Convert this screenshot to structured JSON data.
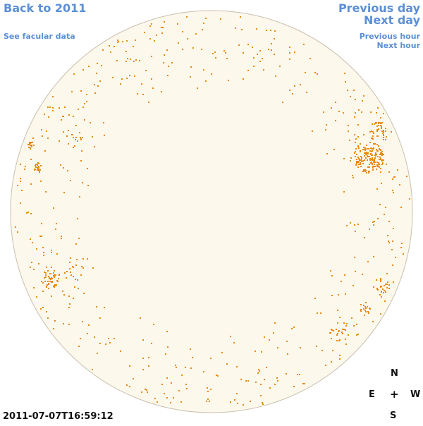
{
  "nav": {
    "back": "Back to 2011",
    "facular": "See facular data",
    "previous_day": "Previous day",
    "next_day": "Next day",
    "previous_hour": "Previous hour",
    "next_hour": "Next hour"
  },
  "timestamp": "2011-07-07T16:59:12",
  "compass": {
    "north": "N",
    "east": "E",
    "center": "+",
    "west": "W",
    "south": "S"
  },
  "colors": {
    "disk_fill": "#fdf8ec",
    "disk_edge": "#c8bfae",
    "spot": "#e88a0c",
    "link": "#5b8fd6"
  }
}
